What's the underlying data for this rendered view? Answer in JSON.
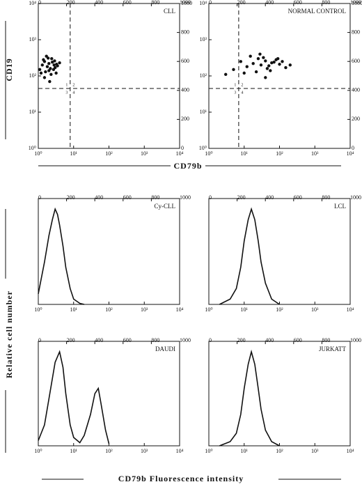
{
  "figure_labels": {
    "top_y": "CD19",
    "top_x": "CD79b",
    "bottom_y": "Relative cell number",
    "bottom_x": "CD79b Fluorescence intensity"
  },
  "chart_data": [
    {
      "type": "scatter",
      "title": "CLL",
      "xlog": true,
      "ylog": true,
      "xlim": [
        1,
        10000
      ],
      "ylim": [
        1,
        10000
      ],
      "xticks": [
        {
          "value": 1,
          "label": "10⁰"
        },
        {
          "value": 10,
          "label": "10¹"
        },
        {
          "value": 100,
          "label": "10²"
        },
        {
          "value": 1000,
          "label": "10³"
        },
        {
          "value": 10000,
          "label": "10⁴"
        }
      ],
      "yticks": [
        {
          "value": 1,
          "label": "10⁰"
        },
        {
          "value": 10,
          "label": "10¹"
        },
        {
          "value": 100,
          "label": "10²"
        },
        {
          "value": 1000,
          "label": "10³"
        },
        {
          "value": 10000,
          "label": "10⁴"
        }
      ],
      "x2lim": [
        0,
        1000
      ],
      "x2ticks": [
        0,
        200,
        400,
        600,
        800,
        1000
      ],
      "y2lim": [
        0,
        1000
      ],
      "y2ticks": [
        0,
        200,
        400,
        600,
        800,
        1000
      ],
      "threshold": {
        "x": 8,
        "y": 45
      },
      "quadrant_labels": [
        "1",
        "2",
        "3",
        "4"
      ],
      "color": "#111111",
      "x": [
        1.1,
        1.3,
        1.5,
        1.8,
        2,
        2.2,
        2.5,
        2.8,
        3,
        3.3,
        1.2,
        1.6,
        2,
        2.4,
        2.9,
        3.5,
        1.4,
        1.9,
        2.3,
        2.7,
        4,
        1.5,
        2.1,
        3.2,
        1.7
      ],
      "y": [
        150,
        200,
        250,
        180,
        220,
        160,
        240,
        200,
        170,
        210,
        120,
        130,
        140,
        300,
        260,
        190,
        280,
        310,
        110,
        150,
        230,
        90,
        70,
        120,
        350
      ]
    },
    {
      "type": "scatter",
      "title": "NORMAL CONTROL",
      "xlog": true,
      "ylog": true,
      "xlim": [
        1,
        10000
      ],
      "ylim": [
        1,
        10000
      ],
      "xticks": [
        {
          "value": 1,
          "label": "10⁰"
        },
        {
          "value": 10,
          "label": "10¹"
        },
        {
          "value": 100,
          "label": "10²"
        },
        {
          "value": 1000,
          "label": "10³"
        },
        {
          "value": 10000,
          "label": "10⁴"
        }
      ],
      "yticks": [
        {
          "value": 1,
          "label": "10⁰"
        },
        {
          "value": 10,
          "label": "10¹"
        },
        {
          "value": 100,
          "label": "10²"
        },
        {
          "value": 1000,
          "label": "10³"
        },
        {
          "value": 10000,
          "label": "10⁴"
        }
      ],
      "x2lim": [
        0,
        1000
      ],
      "x2ticks": [
        0,
        200,
        400,
        600,
        800,
        1000
      ],
      "y2lim": [
        0,
        1000
      ],
      "y2ticks": [
        0,
        200,
        400,
        600,
        800,
        1000
      ],
      "threshold": {
        "x": 7,
        "y": 45
      },
      "quadrant_labels": [
        "1",
        "2",
        "3",
        "4"
      ],
      "color": "#111111",
      "x": [
        5,
        8,
        12,
        18,
        25,
        30,
        40,
        50,
        60,
        80,
        100,
        150,
        200,
        15,
        22,
        35,
        45,
        70,
        10,
        28,
        55,
        90,
        120,
        3,
        40
      ],
      "y": [
        150,
        250,
        180,
        220,
        300,
        200,
        260,
        190,
        230,
        280,
        210,
        170,
        200,
        350,
        130,
        320,
        160,
        240,
        120,
        400,
        140,
        300,
        250,
        110,
        90
      ]
    },
    {
      "type": "line",
      "title": "Cy-CLL",
      "xlog": true,
      "xlim": [
        1,
        10000
      ],
      "ylim": [
        0,
        100
      ],
      "xticks": [
        {
          "value": 1,
          "label": "10⁰"
        },
        {
          "value": 10,
          "label": "10¹"
        },
        {
          "value": 100,
          "label": "10²"
        },
        {
          "value": 1000,
          "label": "10³"
        },
        {
          "value": 10000,
          "label": "10⁴"
        }
      ],
      "x2lim": [
        0,
        1000
      ],
      "x2ticks": [
        0,
        200,
        400,
        600,
        800,
        1000
      ],
      "color": "#111111",
      "x": [
        1,
        1.5,
        2,
        2.5,
        3,
        3.5,
        4,
        5,
        6,
        8,
        10,
        15,
        20
      ],
      "y": [
        10,
        40,
        65,
        80,
        90,
        85,
        75,
        55,
        35,
        15,
        5,
        1,
        0
      ]
    },
    {
      "type": "line",
      "title": "LCL",
      "xlog": true,
      "xlim": [
        1,
        10000
      ],
      "ylim": [
        0,
        100
      ],
      "xticks": [
        {
          "value": 1,
          "label": "10⁰"
        },
        {
          "value": 10,
          "label": "10¹"
        },
        {
          "value": 100,
          "label": "10²"
        },
        {
          "value": 1000,
          "label": "10³"
        },
        {
          "value": 10000,
          "label": "10⁴"
        }
      ],
      "x2lim": [
        0,
        1000
      ],
      "x2ticks": [
        0,
        200,
        400,
        600,
        800,
        1000
      ],
      "color": "#111111",
      "x": [
        2,
        4,
        6,
        8,
        10,
        13,
        16,
        20,
        25,
        30,
        40,
        60,
        100
      ],
      "y": [
        0,
        5,
        15,
        35,
        60,
        80,
        90,
        80,
        60,
        40,
        20,
        5,
        0
      ]
    },
    {
      "type": "line",
      "title": "DAUDI",
      "xlog": true,
      "xlim": [
        1,
        10000
      ],
      "ylim": [
        0,
        100
      ],
      "xticks": [
        {
          "value": 1,
          "label": "10⁰"
        },
        {
          "value": 10,
          "label": "10¹"
        },
        {
          "value": 100,
          "label": "10²"
        },
        {
          "value": 1000,
          "label": "10³"
        },
        {
          "value": 10000,
          "label": "10⁴"
        }
      ],
      "x2lim": [
        0,
        1000
      ],
      "x2ticks": [
        0,
        200,
        400,
        600,
        800,
        1000
      ],
      "color": "#111111",
      "x": [
        1,
        1.5,
        2,
        3,
        4,
        5,
        6,
        8,
        10,
        15,
        20,
        30,
        40,
        50,
        60,
        80,
        100
      ],
      "y": [
        5,
        20,
        45,
        80,
        90,
        75,
        50,
        20,
        8,
        3,
        10,
        30,
        50,
        55,
        40,
        15,
        2
      ]
    },
    {
      "type": "line",
      "title": "JURKATT",
      "xlog": true,
      "xlim": [
        1,
        10000
      ],
      "ylim": [
        0,
        100
      ],
      "xticks": [
        {
          "value": 1,
          "label": "10⁰"
        },
        {
          "value": 10,
          "label": "10¹"
        },
        {
          "value": 100,
          "label": "10²"
        },
        {
          "value": 1000,
          "label": "10³"
        },
        {
          "value": 10000,
          "label": "10⁴"
        }
      ],
      "x2lim": [
        0,
        1000
      ],
      "x2ticks": [
        0,
        200,
        400,
        600,
        800,
        1000
      ],
      "color": "#111111",
      "x": [
        2,
        4,
        6,
        8,
        10,
        13,
        16,
        20,
        25,
        30,
        40,
        60,
        100
      ],
      "y": [
        0,
        4,
        12,
        30,
        55,
        78,
        90,
        78,
        55,
        35,
        15,
        4,
        0
      ]
    }
  ]
}
